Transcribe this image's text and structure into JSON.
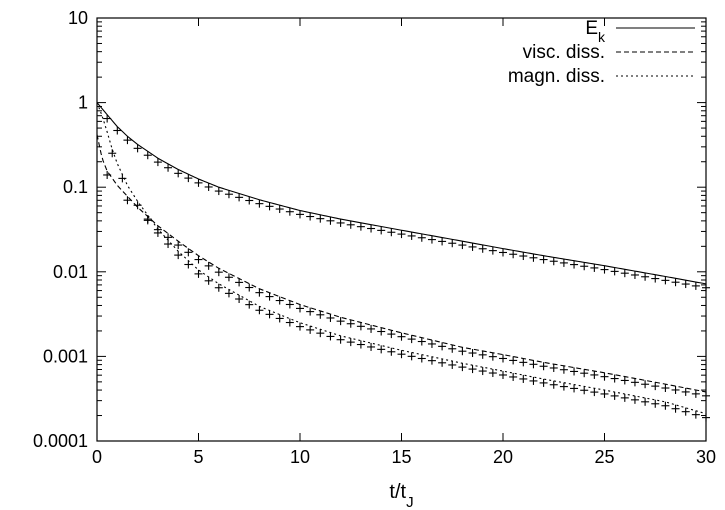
{
  "chart_data": {
    "type": "line",
    "xlabel": {
      "main": "t/t",
      "sub": "J"
    },
    "xlim": [
      0,
      30
    ],
    "ylim": [
      0.0001,
      10
    ],
    "yscale": "log",
    "grid": false,
    "legend_position": "top-right",
    "x_ticks": [
      "0",
      "5",
      "10",
      "15",
      "20",
      "25",
      "30"
    ],
    "y_ticks": [
      "0.0001",
      "0.001",
      "0.01",
      "0.1",
      "1",
      "10"
    ],
    "series": [
      {
        "name": "E",
        "name_sub": "k",
        "line_style": "solid",
        "x": [
          0,
          0.5,
          1,
          1.5,
          2,
          3,
          4,
          5,
          6,
          8,
          10,
          12,
          15,
          18,
          20,
          22,
          25,
          28,
          30
        ],
        "y": [
          1.0,
          0.72,
          0.52,
          0.4,
          0.32,
          0.22,
          0.162,
          0.125,
          0.1,
          0.071,
          0.053,
          0.042,
          0.031,
          0.023,
          0.0188,
          0.0155,
          0.0118,
          0.0088,
          0.0072
        ],
        "markers_x": [
          0.5,
          1,
          1.5,
          2,
          2.5,
          3,
          3.5,
          4,
          4.5,
          5,
          5.5,
          6,
          6.5,
          7,
          7.5,
          8,
          8.5,
          9,
          9.5,
          10,
          10.5,
          11,
          11.5,
          12,
          12.5,
          13,
          13.5,
          14,
          14.5,
          15,
          15.5,
          16,
          16.5,
          17,
          17.5,
          18,
          18.5,
          19,
          19.5,
          20,
          20.5,
          21,
          21.5,
          22,
          22.5,
          23,
          23.5,
          24,
          24.5,
          25,
          25.5,
          26,
          26.5,
          27,
          27.5,
          28,
          28.5,
          29,
          29.5,
          30
        ]
      },
      {
        "name": "visc. diss.",
        "line_style": "dashed",
        "x": [
          0,
          0.25,
          0.5,
          1,
          1.5,
          2,
          3,
          4,
          5,
          6,
          8,
          10,
          12,
          15,
          18,
          20,
          22,
          25,
          28,
          30
        ],
        "y": [
          0.42,
          0.22,
          0.155,
          0.105,
          0.078,
          0.058,
          0.035,
          0.023,
          0.0155,
          0.011,
          0.0063,
          0.0041,
          0.0029,
          0.0019,
          0.00128,
          0.00105,
          0.00085,
          0.00064,
          0.00047,
          0.00038
        ],
        "markers_x": [
          0.5,
          1.5,
          2.5,
          3,
          3.5,
          4,
          4.5,
          5,
          5.5,
          6,
          6.5,
          7,
          7.5,
          8,
          8.5,
          9,
          9.5,
          10,
          10.5,
          11,
          11.5,
          12,
          12.5,
          13,
          13.5,
          14,
          14.5,
          15,
          15.5,
          16,
          16.5,
          17,
          17.5,
          18,
          18.5,
          19,
          19.5,
          20,
          20.5,
          21,
          21.5,
          22,
          22.5,
          23,
          23.5,
          24,
          24.5,
          25,
          25.5,
          26,
          26.5,
          27,
          27.5,
          28,
          28.5,
          29,
          29.5,
          30
        ]
      },
      {
        "name": "magn. diss.",
        "line_style": "dotted",
        "x": [
          0,
          0.25,
          0.5,
          0.75,
          1,
          1.5,
          2,
          3,
          4,
          5,
          6,
          8,
          10,
          12,
          15,
          18,
          20,
          22,
          25,
          28,
          30
        ],
        "y": [
          1.0,
          0.7,
          0.45,
          0.28,
          0.19,
          0.105,
          0.068,
          0.032,
          0.0175,
          0.0105,
          0.0072,
          0.0039,
          0.0025,
          0.00175,
          0.00118,
          0.00083,
          0.00067,
          0.00054,
          0.0004,
          0.00029,
          0.00021
        ],
        "markers_x": [
          0.75,
          1.25,
          2,
          2.5,
          3,
          3.5,
          4,
          4.5,
          5,
          5.5,
          6,
          6.5,
          7,
          7.5,
          8,
          8.5,
          9,
          9.5,
          10,
          10.5,
          11,
          11.5,
          12,
          12.5,
          13,
          13.5,
          14,
          14.5,
          15,
          15.5,
          16,
          16.5,
          17,
          17.5,
          18,
          18.5,
          19,
          19.5,
          20,
          20.5,
          21,
          21.5,
          22,
          22.5,
          23,
          23.5,
          24,
          24.5,
          25,
          25.5,
          26,
          26.5,
          27,
          27.5,
          28,
          28.5,
          29,
          29.5,
          30
        ]
      }
    ]
  }
}
